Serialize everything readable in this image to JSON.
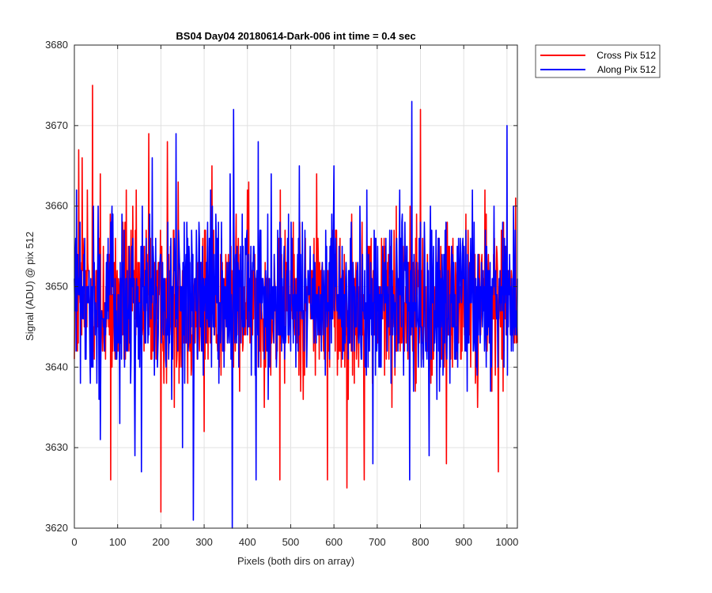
{
  "chart_data": {
    "type": "line",
    "title": "BS04 Day04 20180614-Dark-006 int time = 0.4 sec",
    "xlabel": "Pixels (both dirs on array)",
    "ylabel": "Signal (ADU) @ pix 512",
    "xlim": [
      0,
      1024
    ],
    "ylim": [
      3620,
      3680
    ],
    "xticks": [
      0,
      100,
      200,
      300,
      400,
      500,
      600,
      700,
      800,
      900,
      1000
    ],
    "yticks": [
      3620,
      3630,
      3640,
      3650,
      3660,
      3670,
      3680
    ],
    "grid": true,
    "legend_position": "outside-top-right",
    "series": [
      {
        "name": "Cross Pix 512",
        "color": "#ff0000",
        "mean": 3648,
        "spread": 5,
        "peaks": [
          [
            10,
            3667
          ],
          [
            18,
            3666
          ],
          [
            30,
            3662
          ],
          [
            42,
            3675
          ],
          [
            60,
            3664
          ],
          [
            84,
            3626
          ],
          [
            120,
            3662
          ],
          [
            172,
            3669
          ],
          [
            200,
            3622
          ],
          [
            215,
            3668
          ],
          [
            240,
            3663
          ],
          [
            300,
            3632
          ],
          [
            318,
            3665
          ],
          [
            400,
            3662
          ],
          [
            475,
            3626
          ],
          [
            560,
            3664
          ],
          [
            585,
            3626
          ],
          [
            630,
            3625
          ],
          [
            670,
            3626
          ],
          [
            800,
            3672
          ],
          [
            860,
            3628
          ],
          [
            980,
            3627
          ],
          [
            1020,
            3661
          ]
        ]
      },
      {
        "name": "Along Pix 512",
        "color": "#0000ff",
        "mean": 3648,
        "spread": 5,
        "peaks": [
          [
            5,
            3662
          ],
          [
            60,
            3631
          ],
          [
            140,
            3629
          ],
          [
            155,
            3627
          ],
          [
            180,
            3666
          ],
          [
            235,
            3669
          ],
          [
            250,
            3630
          ],
          [
            275,
            3621
          ],
          [
            315,
            3662
          ],
          [
            360,
            3664
          ],
          [
            365,
            3620
          ],
          [
            368,
            3672
          ],
          [
            420,
            3626
          ],
          [
            425,
            3668
          ],
          [
            455,
            3664
          ],
          [
            520,
            3665
          ],
          [
            600,
            3665
          ],
          [
            660,
            3660
          ],
          [
            690,
            3628
          ],
          [
            775,
            3626
          ],
          [
            780,
            3673
          ],
          [
            820,
            3629
          ],
          [
            920,
            3662
          ],
          [
            1000,
            3670
          ],
          [
            1015,
            3660
          ]
        ]
      }
    ]
  }
}
